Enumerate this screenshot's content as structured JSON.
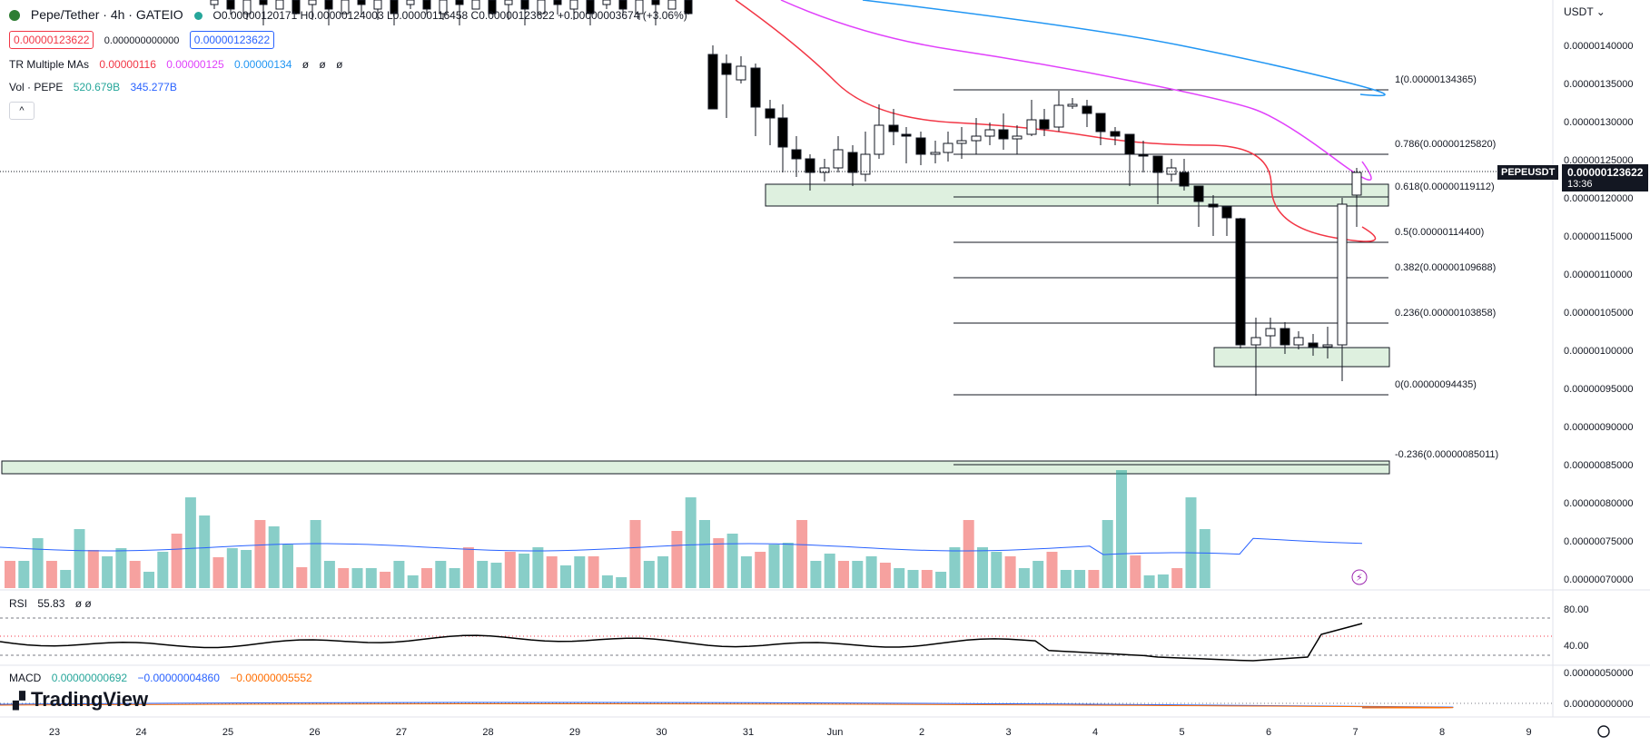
{
  "header": {
    "symbol_title": "Pepe/Tether · 4h · GATEIO",
    "ohlc": "O0.00000120171 H0.00000124003 L0.00000116458 C0.00000123622 +0.00000003674 (+3.06%)",
    "sell_price": "0.00000123622",
    "spread": "0.000000000000",
    "buy_price": "0.00000123622"
  },
  "indicators": {
    "ma_name": "TR Multiple MAs",
    "ma_values": [
      "0.00000116",
      "0.00000125",
      "0.00000134",
      "ø",
      "ø",
      "ø"
    ],
    "vol_name": "Vol · PEPE",
    "vol_values": [
      "520.679B",
      "345.277B"
    ],
    "collapse_label": "^",
    "rsi_name": "RSI",
    "rsi_value": "55.83",
    "rsi_extra": "ø ø",
    "macd_name": "MACD",
    "macd_values": [
      "0.00000000692",
      "−0.00000004860",
      "−0.00000005552"
    ]
  },
  "currency_label": "USDT ⌄",
  "last_price_tag": {
    "symbol": "PEPEUSDT",
    "price": "0.00000123622",
    "countdown": "13:36"
  },
  "price_axis_labels": [
    "0.00000140000",
    "0.00000135000",
    "0.00000130000",
    "0.00000125000",
    "0.00000120000",
    "0.00000115000",
    "0.00000110000",
    "0.00000105000",
    "0.00000100000",
    "0.00000095000",
    "0.00000090000",
    "0.00000085000",
    "0.00000080000",
    "0.00000075000",
    "0.00000070000"
  ],
  "rsi_axis_labels": [
    "80.00",
    "40.00"
  ],
  "macd_axis_labels": [
    "0.00000050000",
    "0.00000000000"
  ],
  "time_axis_labels": [
    "23",
    "24",
    "25",
    "26",
    "27",
    "28",
    "29",
    "30",
    "31",
    "Jun",
    "2",
    "3",
    "4",
    "5",
    "6",
    "7",
    "8",
    "9"
  ],
  "fib_labels": [
    "1(0.00000134365)",
    "0.786(0.00000125820)",
    "0.618(0.00000119112)",
    "0.5(0.00000114400)",
    "0.382(0.00000109688)",
    "0.236(0.00000103858)",
    "0(0.00000094435)",
    "-0.236(0.00000085011)"
  ],
  "branding": "TradingView",
  "colors": {
    "bull": "#ffffff",
    "bear": "#000000",
    "ma_fast": "#f23645",
    "ma_mid": "#e040fb",
    "ma_slow": "#2196f3",
    "vol_up": "#26a69a",
    "vol_down": "#ef5350",
    "zone_fill": "#c8e6c9",
    "rsi": "#000000",
    "macd_line": "#2962ff",
    "macd_signal": "#ff6d00"
  }
}
